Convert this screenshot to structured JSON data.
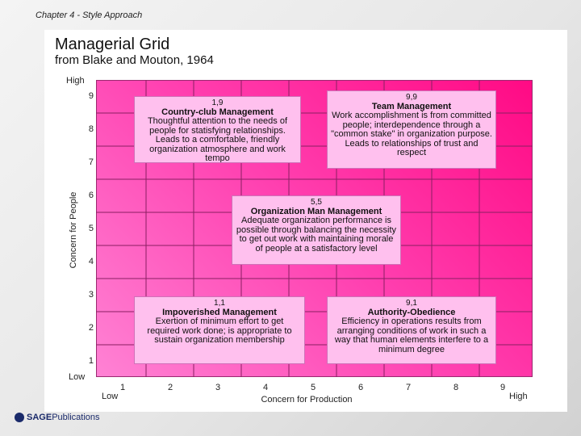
{
  "header": {
    "chapter": "Chapter 4 - Style Approach"
  },
  "slide": {
    "title": "Managerial Grid",
    "subtitle": "from Blake and Mouton, 1964"
  },
  "axes": {
    "y_high": "High",
    "y_low": "Low",
    "x_low": "Low",
    "x_high": "High",
    "ylabel": "Concern for People",
    "xlabel": "Concern for Production",
    "y_ticks": [
      "9",
      "8",
      "7",
      "6",
      "5",
      "4",
      "3",
      "2",
      "1"
    ],
    "x_ticks": [
      "1",
      "2",
      "3",
      "4",
      "5",
      "6",
      "7",
      "8",
      "9"
    ]
  },
  "styles": [
    {
      "code": "1,9",
      "name": "Country-club Management",
      "desc": "Thoughtful attention to the needs of people for statisfying relationships. Leads to a comfortable, friendly organization atmosphere and work tempo"
    },
    {
      "code": "9,9",
      "name": "Team Management",
      "desc": "Work accomplishment is from committed people; interdependence through a \"common stake\" in organization purpose. Leads to relationships of trust and respect"
    },
    {
      "code": "5,5",
      "name": "Organization Man Management",
      "desc": "Adequate organization performance is possible through balancing the necessity to get out work with maintaining morale of people at a satisfactory level"
    },
    {
      "code": "1,1",
      "name": "Impoverished Management",
      "desc": "Exertion of minimum effort to get required work done; is appropriate to sustain organization membership"
    },
    {
      "code": "9,1",
      "name": "Authority-Obedience",
      "desc": "Efficiency in operations results from arranging conditions of work in such a way that human elements interfere to a minimum degree"
    }
  ],
  "footer": {
    "logo_brand": "SAGE",
    "logo_rest": "Publications"
  },
  "colors": {
    "grid_start": "#ff82d4",
    "grid_end": "#ff0a84",
    "box_fill": "#ffc0ee"
  }
}
